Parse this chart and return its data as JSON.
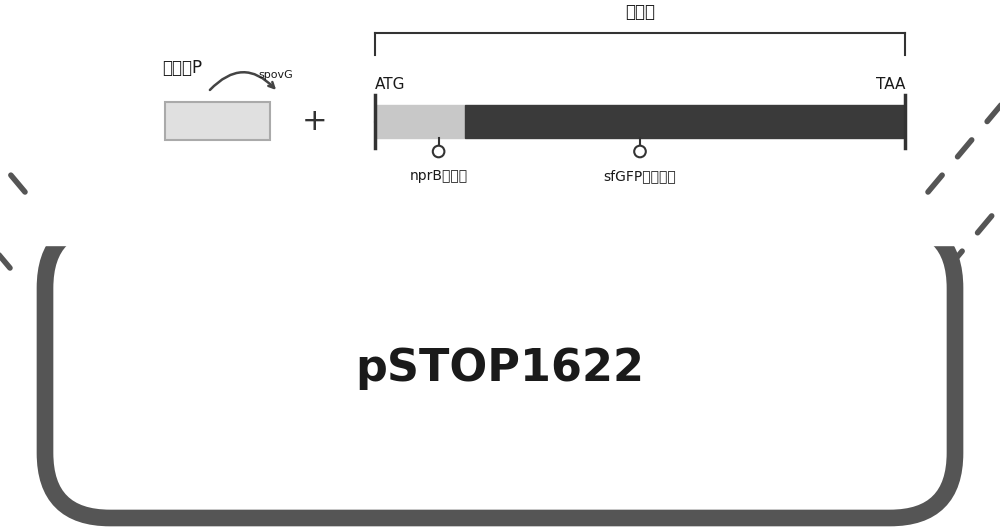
{
  "bg_color": "#ffffff",
  "plasmid_color": "#555555",
  "plasmid_text": "pSTOP1622",
  "plasmid_text_fontsize": 32,
  "title_biaodakuang": "表达框",
  "label_ATG": "ATG",
  "label_TAA": "TAA",
  "label_nprB": "nprB信号肽",
  "label_sfGFP": "sfGFP编码基因",
  "label_promoter": "启动子P",
  "label_spovG": "spovG",
  "bar_light_color": "#c8c8c8",
  "bar_dark_color": "#3a3a3a",
  "line_color": "#333333",
  "dashed_color": "#555555",
  "plasmid_lw": 12
}
